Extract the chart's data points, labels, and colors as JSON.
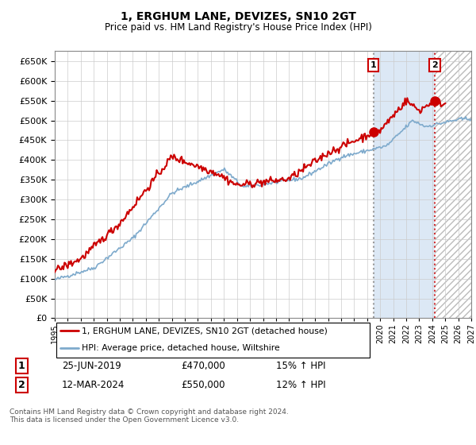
{
  "title": "1, ERGHUM LANE, DEVIZES, SN10 2GT",
  "subtitle": "Price paid vs. HM Land Registry's House Price Index (HPI)",
  "ylim": [
    0,
    675000
  ],
  "yticks": [
    0,
    50000,
    100000,
    150000,
    200000,
    250000,
    300000,
    350000,
    400000,
    450000,
    500000,
    550000,
    600000,
    650000
  ],
  "xlim_start": 1995.0,
  "xlim_end": 2027.0,
  "legend_line1": "1, ERGHUM LANE, DEVIZES, SN10 2GT (detached house)",
  "legend_line2": "HPI: Average price, detached house, Wiltshire",
  "sale1_date": "25-JUN-2019",
  "sale1_price": "£470,000",
  "sale1_hpi": "15% ↑ HPI",
  "sale1_x": 2019.48,
  "sale1_y": 470000,
  "sale2_date": "12-MAR-2024",
  "sale2_price": "£550,000",
  "sale2_hpi": "12% ↑ HPI",
  "sale2_x": 2024.2,
  "sale2_y": 550000,
  "footer": "Contains HM Land Registry data © Crown copyright and database right 2024.\nThis data is licensed under the Open Government Licence v3.0.",
  "red_color": "#cc0000",
  "blue_color": "#7eaacc",
  "blue_shade_color": "#dce8f5",
  "hatch_shade_color": "#e8e8e8",
  "background_color": "#ffffff",
  "grid_color": "#cccccc",
  "sale1_vline_color": "#aaaaaa",
  "sale2_vline_color": "#dd4444"
}
